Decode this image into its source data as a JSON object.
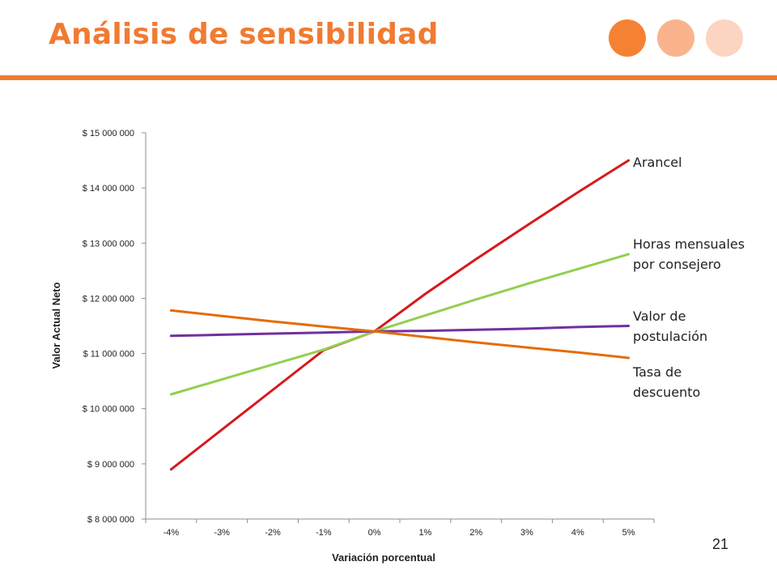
{
  "slide": {
    "title": "Análisis de sensibilidad",
    "page_number": "21",
    "accent_color": "#f07b32"
  },
  "chart_data": {
    "type": "line",
    "title": "",
    "xlabel": "Variación porcentual",
    "ylabel": "Valor Actual Neto",
    "categories": [
      "-4%",
      "-3%",
      "-2%",
      "-1%",
      "0%",
      "1%",
      "2%",
      "3%",
      "4%",
      "5%"
    ],
    "ylim": [
      8000000,
      15000000
    ],
    "yticks": [
      8000000,
      9000000,
      10000000,
      11000000,
      12000000,
      13000000,
      14000000,
      15000000
    ],
    "ytick_labels": [
      "$ 8 000 000",
      "$ 9 000 000",
      "$ 10 000 000",
      "$ 11 000 000",
      "$ 12 000 000",
      "$ 13 000 000",
      "$ 14 000 000",
      "$ 15 000 000"
    ],
    "grid": false,
    "legend": "direct labels at right end of lines",
    "series": [
      {
        "name": "Arancel",
        "label_lines": [
          "Arancel"
        ],
        "color": "#d7191c",
        "values": [
          8900000,
          9620000,
          10340000,
          11060000,
          11400000,
          12080000,
          12710000,
          13320000,
          13920000,
          14500000
        ]
      },
      {
        "name": "Horas mensuales por consejero",
        "label_lines": [
          "Horas mensuales",
          "por consejero"
        ],
        "color": "#92d050",
        "values": [
          10260000,
          10530000,
          10800000,
          11070000,
          11400000,
          11690000,
          11980000,
          12260000,
          12530000,
          12800000
        ]
      },
      {
        "name": "Valor de postulación",
        "label_lines": [
          "Valor de",
          "postulación"
        ],
        "color": "#7030a0",
        "values": [
          11320000,
          11340000,
          11360000,
          11380000,
          11400000,
          11410000,
          11430000,
          11450000,
          11480000,
          11500000
        ]
      },
      {
        "name": "Tasa de descuento",
        "label_lines": [
          "Tasa de",
          "descuento"
        ],
        "color": "#e46c0a",
        "values": [
          11780000,
          11680000,
          11580000,
          11490000,
          11400000,
          11300000,
          11200000,
          11110000,
          11020000,
          10920000
        ]
      }
    ]
  }
}
